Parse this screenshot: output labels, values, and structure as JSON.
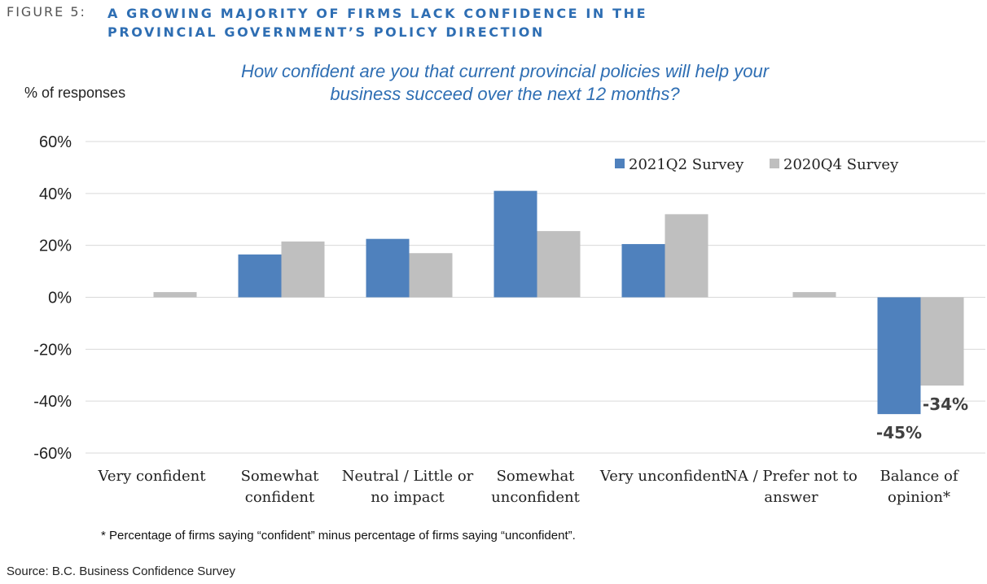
{
  "figure": {
    "label": "FIGURE 5:",
    "title": "A GROWING MAJORITY OF FIRMS LACK CONFIDENCE IN THE PROVINCIAL GOVERNMENT’S POLICY DIRECTION"
  },
  "chart_data": {
    "type": "bar",
    "title": "How confident are you that current provincial policies will help your business succeed over the next 12 months?",
    "ylabel": "% of responses",
    "xlabel": "",
    "ylim": [
      -60,
      60
    ],
    "yticks": [
      60,
      40,
      20,
      0,
      -20,
      -40,
      -60
    ],
    "ytick_labels": [
      "60%",
      "40%",
      "20%",
      "0%",
      "-20%",
      "-40%",
      "-60%"
    ],
    "categories": [
      [
        "Very confident"
      ],
      [
        "Somewhat",
        "confident"
      ],
      [
        "Neutral / Little or",
        "no impact"
      ],
      [
        "Somewhat",
        "unconfident"
      ],
      [
        "Very unconfident"
      ],
      [
        "NA / Prefer not to",
        "answer"
      ],
      [
        "Balance of",
        "opinion*"
      ]
    ],
    "series": [
      {
        "name": "2021Q2 Survey",
        "color": "#4f81bd",
        "values": [
          0,
          16.5,
          22.5,
          41,
          20.5,
          0,
          -45
        ]
      },
      {
        "name": "2020Q4 Survey",
        "color": "#bfbfbf",
        "values": [
          2,
          21.5,
          17,
          25.5,
          32,
          2,
          -34
        ]
      }
    ],
    "data_labels": [
      {
        "series": 0,
        "category": 6,
        "text": "-45%"
      },
      {
        "series": 1,
        "category": 6,
        "text": "-34%"
      }
    ],
    "grid": true,
    "legend_position": "top-right"
  },
  "footnote": "* Percentage of firms saying “confident” minus percentage of firms saying “unconfident”.",
  "source": "Source:  B.C. Business Confidence Survey"
}
